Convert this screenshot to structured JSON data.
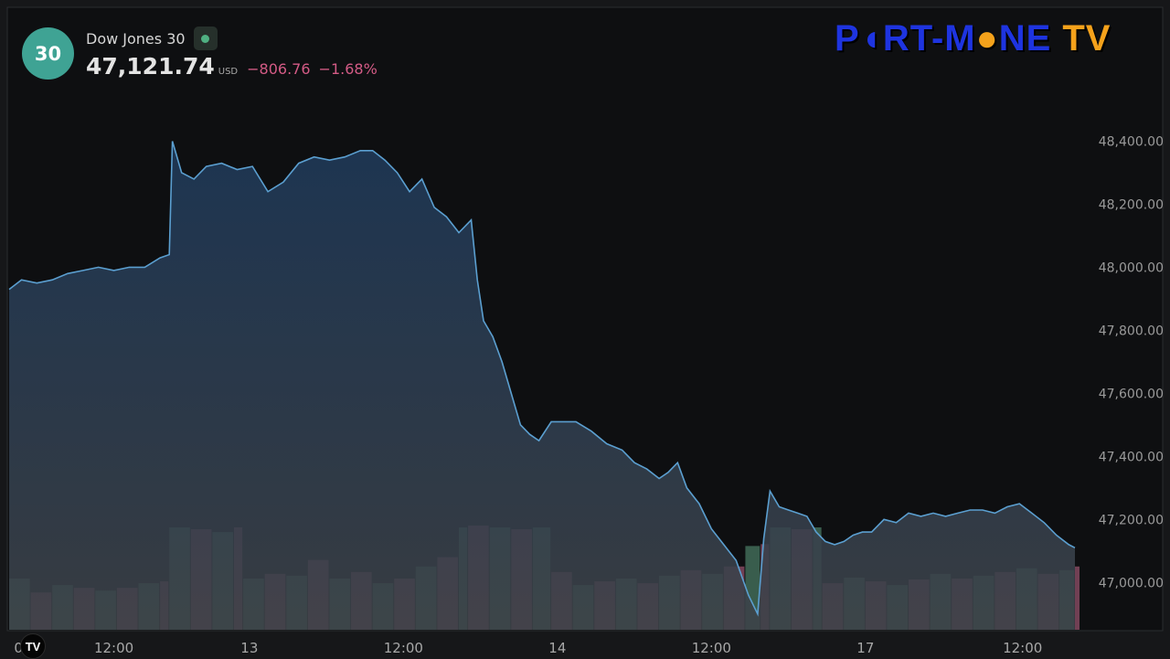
{
  "header": {
    "badge": "30",
    "name": "Dow Jones 30",
    "price": "47,121.74",
    "currency": "USD",
    "change": "−806.76",
    "change_pct": "−1.68%"
  },
  "logo": {
    "p": "P",
    "moon": "◖",
    "rt": "RT-M",
    "sun": "●",
    "ne": "NE",
    "tv": "TV"
  },
  "colors": {
    "background": "#161719",
    "line": "#5b9fd0",
    "area_top": "#1f3a5a",
    "area_bottom": "#3d4248",
    "volume_up": "#5d9e7f",
    "volume_down": "#c2698c",
    "axis_text": "#9a9a9a",
    "negative": "#d45b86",
    "badge": "#3fa394"
  },
  "chart_data": {
    "type": "area",
    "title": "Dow Jones 30",
    "ylabel": "",
    "ylim": [
      46850,
      48500
    ],
    "y_ticks": [
      48400,
      48200,
      48000,
      47800,
      47600,
      47400,
      47200,
      47000
    ],
    "y_tick_labels": [
      "48,400.00",
      "48,200.00",
      "48,000.00",
      "47,800.00",
      "47,600.00",
      "47,400.00",
      "47,200.00",
      "47,000.00"
    ],
    "x_tick_labels": [
      {
        "label": "0",
        "t": 1.9
      },
      {
        "label": "12:00",
        "t": 5
      },
      {
        "label": "13",
        "t": 9.4
      },
      {
        "label": "12:00",
        "t": 14.4
      },
      {
        "label": "14",
        "t": 19.4
      },
      {
        "label": "12:00",
        "t": 24.4
      },
      {
        "label": "17",
        "t": 29.4
      },
      {
        "label": "12:00",
        "t": 34.5
      }
    ],
    "x_range": [
      1.6,
      36.2
    ],
    "series": [
      {
        "type": "area",
        "x": [
          1.6,
          2.0,
          2.5,
          3.0,
          3.5,
          4.0,
          4.5,
          5.0,
          5.5,
          6.0,
          6.5,
          6.8,
          6.9,
          7.2,
          7.6,
          8.0,
          8.5,
          9.0,
          9.5,
          10.0,
          10.5,
          11.0,
          11.5,
          12.0,
          12.5,
          13.0,
          13.4,
          13.8,
          14.2,
          14.6,
          15.0,
          15.4,
          15.8,
          16.2,
          16.6,
          16.8,
          17.0,
          17.3,
          17.6,
          17.9,
          18.2,
          18.5,
          18.8,
          19.2,
          19.6,
          20.0,
          20.5,
          21.0,
          21.5,
          21.9,
          22.3,
          22.7,
          23.0,
          23.3,
          23.6,
          24.0,
          24.4,
          24.8,
          25.2,
          25.6,
          25.9,
          26.1,
          26.3,
          26.6,
          26.9,
          27.2,
          27.5,
          27.8,
          28.1,
          28.4,
          28.7,
          29.0,
          29.3,
          29.6,
          30.0,
          30.4,
          30.8,
          31.2,
          31.6,
          32.0,
          32.4,
          32.8,
          33.2,
          33.6,
          34.0,
          34.4,
          34.8,
          35.2,
          35.6,
          36.0,
          36.2
        ],
        "y": [
          47930,
          47960,
          47950,
          47960,
          47980,
          47990,
          48000,
          47990,
          48000,
          48000,
          48030,
          48040,
          48400,
          48300,
          48280,
          48320,
          48330,
          48310,
          48320,
          48240,
          48270,
          48330,
          48350,
          48340,
          48350,
          48370,
          48370,
          48340,
          48300,
          48240,
          48280,
          48190,
          48160,
          48110,
          48150,
          47960,
          47830,
          47780,
          47700,
          47600,
          47500,
          47470,
          47450,
          47510,
          47510,
          47510,
          47480,
          47440,
          47420,
          47380,
          47360,
          47330,
          47350,
          47380,
          47300,
          47250,
          47170,
          47120,
          47070,
          46960,
          46900,
          47140,
          47290,
          47240,
          47230,
          47220,
          47210,
          47160,
          47130,
          47120,
          47130,
          47150,
          47160,
          47160,
          47200,
          47190,
          47220,
          47210,
          47220,
          47210,
          47220,
          47230,
          47230,
          47220,
          47240,
          47250,
          47220,
          47190,
          47150,
          47120,
          47110
        ]
      },
      {
        "type": "volume",
        "x": [
          1.6,
          2.3,
          3.0,
          3.7,
          4.4,
          5.1,
          5.8,
          6.5,
          6.8,
          7.5,
          8.2,
          8.9,
          9.2,
          9.9,
          10.6,
          11.3,
          12.0,
          12.7,
          13.4,
          14.1,
          14.8,
          15.5,
          16.2,
          16.5,
          17.2,
          17.9,
          18.6,
          19.2,
          19.9,
          20.6,
          21.3,
          22.0,
          22.7,
          23.4,
          24.1,
          24.8,
          25.5,
          26.0,
          26.3,
          27.0,
          27.7,
          28.0,
          28.7,
          29.4,
          30.1,
          30.8,
          31.5,
          32.2,
          32.9,
          33.6,
          34.3,
          35.0,
          35.7,
          36.2
        ],
        "volume": [
          55,
          40,
          48,
          45,
          42,
          45,
          50,
          52,
          110,
          108,
          105,
          110,
          55,
          60,
          58,
          75,
          55,
          62,
          50,
          55,
          68,
          78,
          110,
          112,
          110,
          108,
          110,
          62,
          48,
          52,
          55,
          50,
          58,
          64,
          60,
          68,
          90,
          92,
          110,
          108,
          110,
          50,
          56,
          52,
          48,
          54,
          60,
          55,
          58,
          62,
          66,
          60,
          64,
          68
        ]
      }
    ]
  }
}
